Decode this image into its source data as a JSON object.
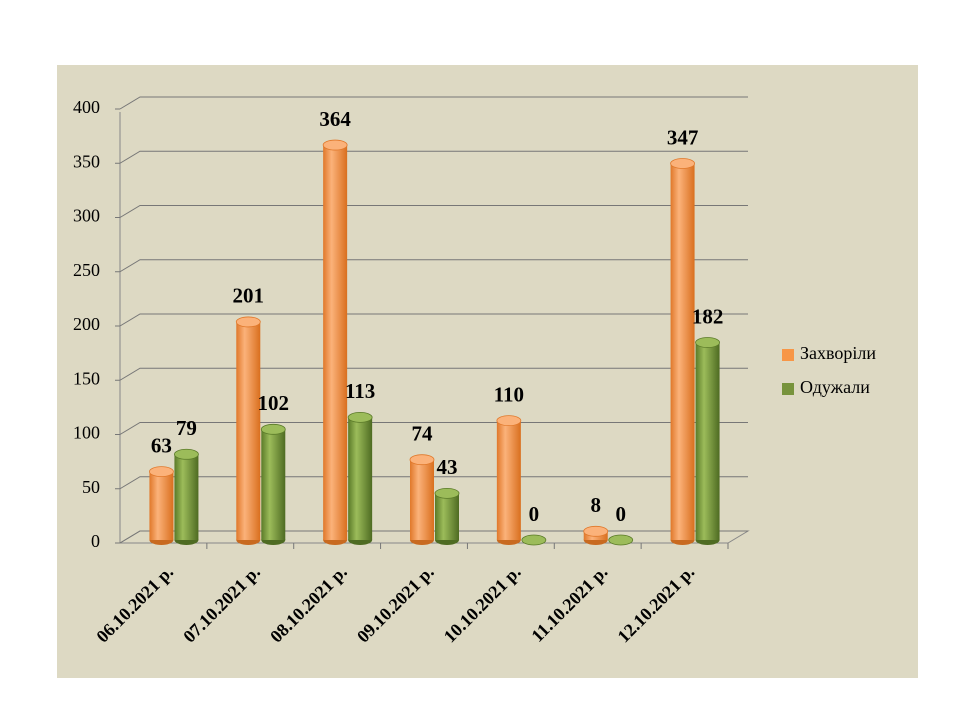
{
  "chart_data": {
    "type": "bar",
    "categories": [
      "06.10.2021 р.",
      "07.10.2021 р.",
      "08.10.2021 р.",
      "09.10.2021 р.",
      "10.10.2021 р.",
      "11.10.2021 р.",
      "12.10.2021 р."
    ],
    "series": [
      {
        "name": "Захворіли",
        "color": "#f79646",
        "values": [
          63,
          201,
          364,
          74,
          110,
          8,
          347
        ]
      },
      {
        "name": "Одужали",
        "color": "#77933c",
        "values": [
          79,
          102,
          113,
          43,
          0,
          0,
          182
        ]
      }
    ],
    "ylim": [
      0,
      400
    ],
    "yticks": [
      0,
      50,
      100,
      150,
      200,
      250,
      300,
      350,
      400
    ],
    "grid": true,
    "legend": "right"
  }
}
